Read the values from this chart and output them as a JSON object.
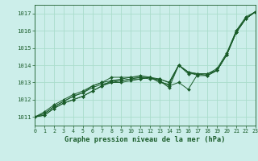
{
  "title": "Graphe pression niveau de la mer (hPa)",
  "bg_color": "#cceeea",
  "grid_color": "#aaddcc",
  "line_color": "#1a5c2a",
  "tick_color": "#1a5c2a",
  "xlim": [
    0,
    23
  ],
  "ylim": [
    1010.5,
    1017.5
  ],
  "yticks": [
    1011,
    1012,
    1013,
    1014,
    1015,
    1016,
    1017
  ],
  "xticks": [
    0,
    1,
    2,
    3,
    4,
    5,
    6,
    7,
    8,
    9,
    10,
    11,
    12,
    13,
    14,
    15,
    16,
    17,
    18,
    19,
    20,
    21,
    22,
    23
  ],
  "series": [
    [
      1011.0,
      1011.1,
      1011.5,
      1011.8,
      1012.0,
      1012.2,
      1012.5,
      1012.8,
      1013.0,
      1013.0,
      1013.1,
      1013.2,
      1013.3,
      1013.1,
      1012.7,
      1014.0,
      1013.6,
      1013.4,
      1013.4,
      1013.7,
      1014.6,
      1015.9,
      1016.7,
      1017.1
    ],
    [
      1011.0,
      1011.1,
      1011.5,
      1011.8,
      1012.0,
      1012.2,
      1012.5,
      1012.8,
      1013.1,
      1013.1,
      1013.2,
      1013.2,
      1013.3,
      1013.1,
      1012.8,
      1013.0,
      1012.6,
      1013.5,
      1013.5,
      1013.7,
      1014.6,
      1015.9,
      1016.7,
      1017.1
    ],
    [
      1011.0,
      1011.2,
      1011.6,
      1011.9,
      1012.2,
      1012.4,
      1012.7,
      1012.9,
      1013.0,
      1013.1,
      1013.2,
      1013.3,
      1013.2,
      1013.2,
      1013.0,
      1014.0,
      1013.5,
      1013.5,
      1013.4,
      1013.7,
      1014.6,
      1015.9,
      1016.7,
      1017.1
    ],
    [
      1011.0,
      1011.2,
      1011.6,
      1011.9,
      1012.2,
      1012.4,
      1012.8,
      1013.0,
      1013.3,
      1013.3,
      1013.3,
      1013.4,
      1013.3,
      1013.0,
      1012.9,
      1014.0,
      1013.6,
      1013.5,
      1013.5,
      1013.8,
      1014.7,
      1016.0,
      1016.8,
      1017.1
    ],
    [
      1011.0,
      1011.3,
      1011.7,
      1012.0,
      1012.3,
      1012.5,
      1012.8,
      1013.0,
      1013.1,
      1013.2,
      1013.3,
      1013.3,
      1013.3,
      1013.2,
      1013.0,
      1014.0,
      1013.6,
      1013.5,
      1013.5,
      1013.7,
      1014.6,
      1016.0,
      1016.7,
      1017.1
    ]
  ]
}
